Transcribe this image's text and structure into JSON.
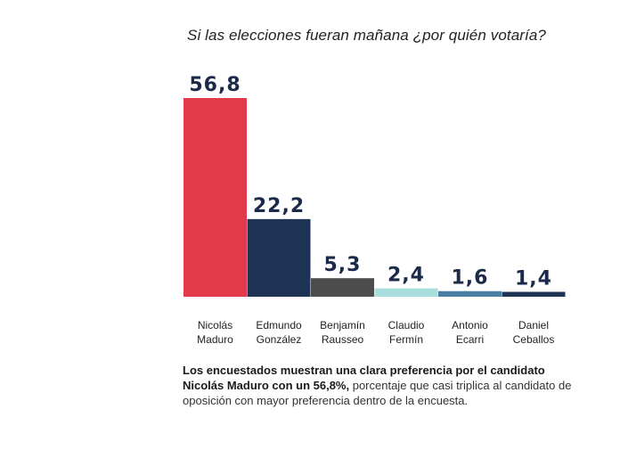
{
  "title": "Si las elecciones fueran mañana ¿por quién votaría?",
  "chart_data": {
    "type": "bar",
    "categories": [
      [
        "Nicolás",
        "Maduro"
      ],
      [
        "Edmundo",
        "González"
      ],
      [
        "Benjamín",
        "Rausseo"
      ],
      [
        "Claudio",
        "Fermín"
      ],
      [
        "Antonio",
        "Ecarri"
      ],
      [
        "Daniel",
        "Ceballos"
      ]
    ],
    "values": [
      56.8,
      22.2,
      5.3,
      2.4,
      1.6,
      1.4
    ],
    "value_labels": [
      "56,8",
      "22,2",
      "5,3",
      "2,4",
      "1,6",
      "1,4"
    ],
    "colors": [
      "#e23a4a",
      "#1f3454",
      "#4c4c4c",
      "#a9dedd",
      "#4a7fa3",
      "#1f3454"
    ],
    "grid": false,
    "legend": "none"
  },
  "note": {
    "bold": "Los encuestados muestran una clara preferencia por el candidato Nicolás Maduro con un 56,8%,",
    "regular": " porcentaje que casi triplica al candidato de oposición con mayor preferencia dentro de la encuesta."
  }
}
